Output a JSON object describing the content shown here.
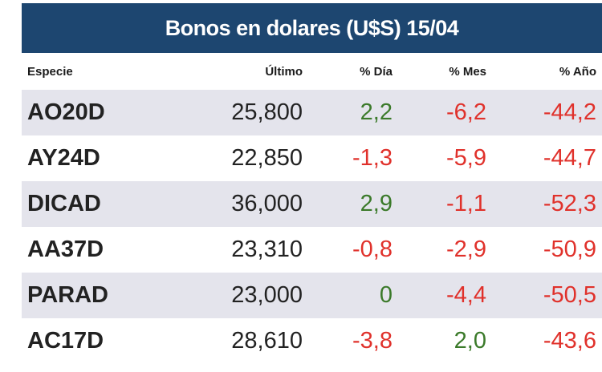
{
  "title": "Bonos en dolares (U$S) 15/04",
  "columns": {
    "especie": "Especie",
    "ultimo": "Último",
    "dia": "% Día",
    "mes": "% Mes",
    "anio": "% Año"
  },
  "rows": [
    {
      "especie": "AO20D",
      "ultimo": "25,800",
      "dia": "2,2",
      "mes": "-6,2",
      "anio": "-44,2"
    },
    {
      "especie": "AY24D",
      "ultimo": "22,850",
      "dia": "-1,3",
      "mes": "-5,9",
      "anio": "-44,7"
    },
    {
      "especie": "DICAD",
      "ultimo": "36,000",
      "dia": "2,9",
      "mes": "-1,1",
      "anio": "-52,3"
    },
    {
      "especie": "AA37D",
      "ultimo": "23,310",
      "dia": "-0,8",
      "mes": "-2,9",
      "anio": "-50,9"
    },
    {
      "especie": "PARAD",
      "ultimo": "23,000",
      "dia": "0",
      "mes": "-4,4",
      "anio": "-50,5"
    },
    {
      "especie": "AC17D",
      "ultimo": "28,610",
      "dia": "-3,8",
      "mes": "2,0",
      "anio": "-43,6"
    }
  ],
  "colors": {
    "header_bg": "#1d4670",
    "positive": "#3b7a2a",
    "negative": "#e0312b",
    "row_alt": "#e4e4ec"
  }
}
